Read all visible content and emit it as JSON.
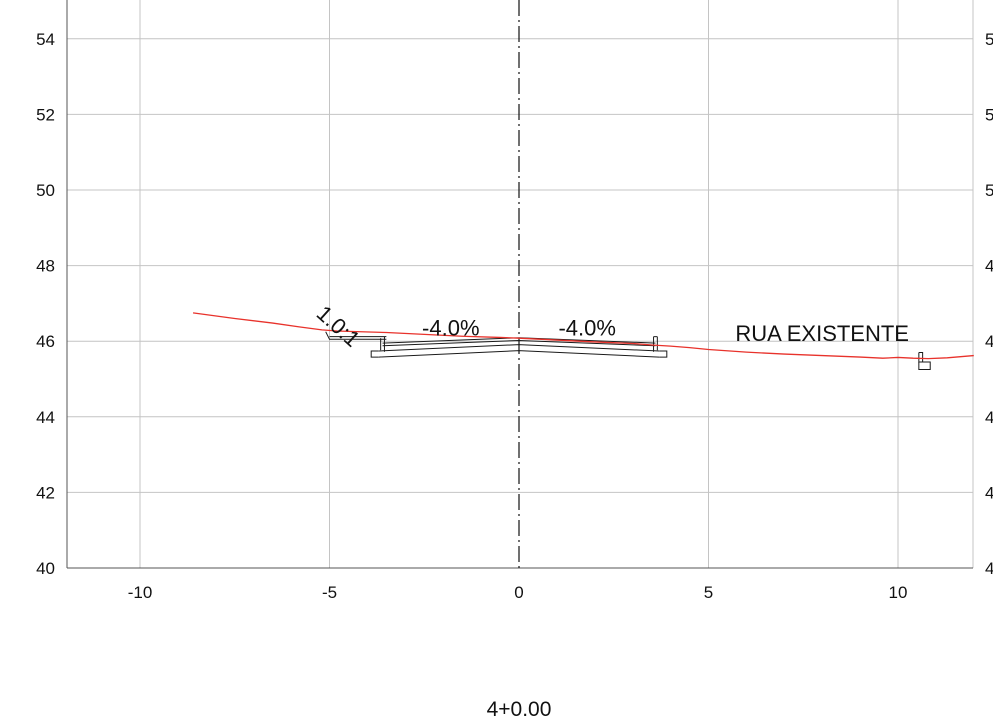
{
  "chart_data": {
    "type": "line",
    "title": "",
    "station_label": "4+0.00",
    "xlabel": "",
    "ylabel": "",
    "xlim": [
      -12,
      12
    ],
    "ylim": [
      40,
      55
    ],
    "x_ticks": [
      -10,
      -5,
      0,
      5,
      10
    ],
    "x_tick_labels": [
      "-10",
      "-5",
      "0",
      "5",
      "10"
    ],
    "y_ticks": [
      40,
      42,
      44,
      46,
      48,
      50,
      52,
      54
    ],
    "y_tick_labels": [
      "40",
      "42",
      "44",
      "46",
      "48",
      "50",
      "52",
      "54"
    ],
    "right_y_tick_labels": [
      "4",
      "4",
      "4",
      "4",
      "4",
      "5",
      "5",
      "5"
    ],
    "grid": true,
    "centerline_x": 0,
    "series": [
      {
        "name": "",
        "color": "#e8322b",
        "x": [
          -8.6,
          -7.5,
          -6.5,
          -5.8,
          -5.2,
          -4.8,
          -4.5,
          -3.5,
          -2.5,
          -1.5,
          -0.5,
          0,
          1,
          2,
          3,
          3.5,
          4,
          4.5,
          5,
          6,
          7,
          8,
          9,
          9.6,
          10,
          10.4,
          10.8,
          11.3,
          12
        ],
        "y": [
          46.75,
          46.6,
          46.48,
          46.38,
          46.3,
          46.27,
          46.26,
          46.23,
          46.18,
          46.13,
          46.1,
          46.08,
          46.03,
          45.98,
          45.94,
          45.9,
          45.87,
          45.83,
          45.78,
          45.71,
          45.66,
          45.62,
          45.58,
          45.55,
          45.57,
          45.55,
          45.54,
          45.56,
          45.62
        ]
      }
    ],
    "annotations": [
      {
        "text": "1.0:1",
        "x": -4.9,
        "y": 46.25,
        "rotation": 42
      },
      {
        "text": "-4.0%",
        "x": -1.8,
        "y": 46.15
      },
      {
        "text": "-4.0%",
        "x": 1.8,
        "y": 46.15
      },
      {
        "text": "RUA EXISTENTE",
        "x": 8.0,
        "y": 46.0
      }
    ]
  }
}
